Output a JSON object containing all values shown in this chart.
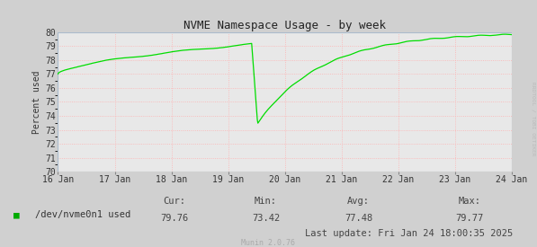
{
  "title": "NVME Namespace Usage - by week",
  "ylabel": "Percent used",
  "ylim": [
    70,
    80
  ],
  "yticks": [
    70,
    71,
    72,
    73,
    74,
    75,
    76,
    77,
    78,
    79,
    80
  ],
  "bg_color": "#d0d0d0",
  "plot_bg_color": "#e8e8e8",
  "grid_color": "#ffb0b0",
  "line_color": "#00dd00",
  "xtick_labels": [
    "16 Jan",
    "17 Jan",
    "18 Jan",
    "19 Jan",
    "20 Jan",
    "21 Jan",
    "22 Jan",
    "23 Jan",
    "24 Jan"
  ],
  "legend_label": "/dev/nvme0n1 used",
  "legend_color": "#00aa00",
  "cur_label": "Cur:",
  "min_label": "Min:",
  "avg_label": "Avg:",
  "max_label": "Max:",
  "cur": "79.76",
  "min": "73.42",
  "avg": "77.48",
  "max": "79.77",
  "last_update": "Last update: Fri Jan 24 18:00:35 2025",
  "munin_version": "Munin 2.0.76",
  "rrdtool_text": "RRDTOOL / TOBI OETIKER",
  "title_fontsize": 9,
  "axis_fontsize": 7,
  "legend_fontsize": 7.5,
  "stats_fontsize": 7.5,
  "munin_fontsize": 6
}
